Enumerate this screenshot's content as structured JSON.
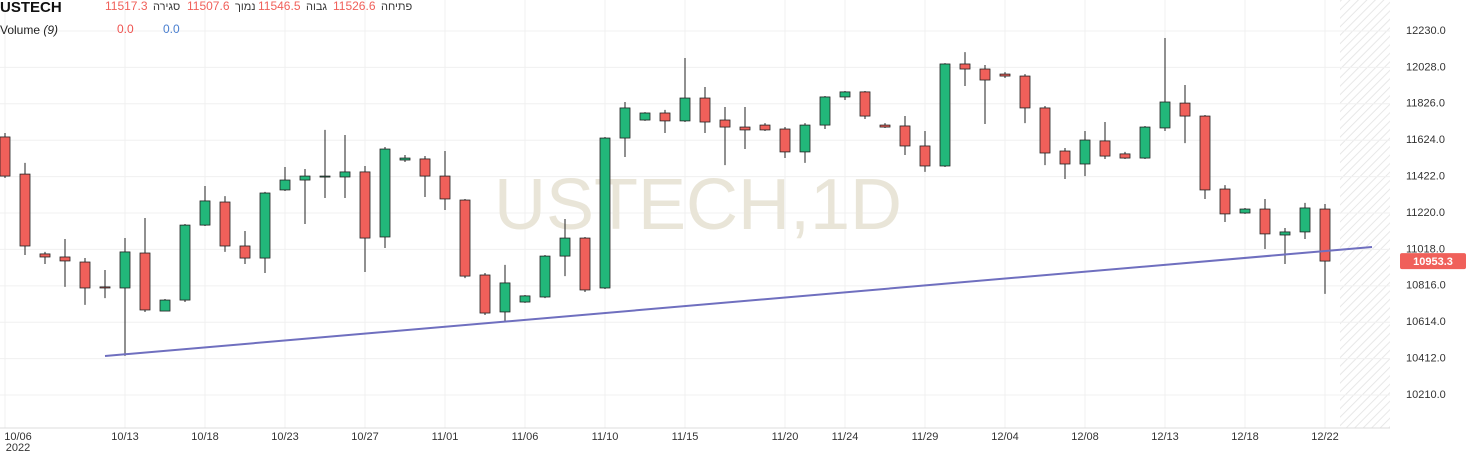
{
  "chart_data": {
    "type": "candlestick",
    "title": "USTECH",
    "watermark": "USTECH,1D",
    "year_label": "2022",
    "ohlc_legend": [
      {
        "label": "פתיחה",
        "value": 11526.6
      },
      {
        "label": "גבוה",
        "value": 11546.5
      },
      {
        "label": "נמוך",
        "value": 11507.6
      },
      {
        "label": "סגירה",
        "value": 11517.3
      }
    ],
    "volume_legend": {
      "label": "Volume",
      "period": "(9)",
      "values": [
        "0.0",
        "0.0"
      ],
      "colors": [
        "#ef5350",
        "#4a7fd0"
      ]
    },
    "categories": [
      "10/06",
      null,
      null,
      null,
      null,
      null,
      "10/13",
      null,
      null,
      null,
      "10/18",
      null,
      null,
      null,
      "10/23",
      null,
      null,
      null,
      "10/27",
      null,
      null,
      null,
      "11/01",
      null,
      null,
      null,
      "11/06",
      null,
      null,
      null,
      "11/10",
      null,
      null,
      null,
      "11/15",
      null,
      null,
      null,
      null,
      "11/20",
      null,
      null,
      "11/24",
      null,
      null,
      null,
      "11/29",
      null,
      null,
      null,
      "12/04",
      null,
      null,
      null,
      "12/08",
      null,
      null,
      null,
      "12/13",
      null,
      null,
      null,
      "12/18",
      null,
      null,
      null,
      "12/22"
    ],
    "open": [
      11642,
      11436,
      10993,
      10976,
      10948,
      10810,
      10804,
      10998,
      10676,
      10737,
      11153,
      11281,
      11037,
      10970,
      11348,
      11403,
      11420,
      11420,
      11448,
      11087,
      11514,
      11520,
      11425,
      11292,
      10876,
      10671,
      10726,
      10754,
      10981,
      11081,
      10804,
      11636,
      11736,
      11775,
      11731,
      11858,
      11736,
      11697,
      11708,
      11686,
      11559,
      11708,
      11864,
      11892,
      11708,
      11703,
      11592,
      11481,
      12047,
      12019,
      11991,
      11980,
      11803,
      11564,
      11492,
      11620,
      11548,
      11525,
      11692,
      11830,
      11758,
      11353,
      11220,
      11242,
      11098,
      11115,
      11242
    ],
    "high": [
      11664,
      11498,
      11004,
      11076,
      10970,
      10904,
      11081,
      11192,
      10743,
      11159,
      11370,
      11314,
      11120,
      11337,
      11475,
      11464,
      11681,
      11653,
      11481,
      11586,
      11542,
      11536,
      11564,
      11298,
      10887,
      10932,
      10765,
      10987,
      11187,
      11087,
      11642,
      11836,
      11780,
      11792,
      12080,
      11919,
      11808,
      11808,
      11719,
      11697,
      11719,
      11869,
      11897,
      11897,
      11719,
      11758,
      11675,
      12052,
      12113,
      12041,
      12002,
      11991,
      11814,
      11581,
      11675,
      11725,
      11559,
      11703,
      12191,
      11930,
      11764,
      11375,
      11248,
      11298,
      11137,
      11276,
      11270
    ],
    "low": [
      11414,
      10987,
      10937,
      10810,
      10710,
      10748,
      10427,
      10671,
      10676,
      10726,
      11148,
      11004,
      10937,
      10887,
      11342,
      11159,
      11303,
      11303,
      10893,
      11026,
      11503,
      11309,
      11237,
      10859,
      10654,
      10615,
      10721,
      10748,
      10870,
      10782,
      10798,
      11531,
      11731,
      11664,
      11725,
      11664,
      11486,
      11575,
      11675,
      11525,
      11498,
      11686,
      11847,
      11742,
      11692,
      11542,
      11448,
      11475,
      11925,
      11714,
      11969,
      11719,
      11486,
      11409,
      11425,
      11520,
      11520,
      11520,
      11675,
      11608,
      11298,
      11170,
      11215,
      11020,
      10937,
      11076,
      10771
    ],
    "close": [
      11425,
      11037,
      10976,
      10954,
      10804,
      10804,
      11004,
      10682,
      10737,
      11153,
      11287,
      11037,
      10970,
      11331,
      11403,
      11425,
      11425,
      11448,
      11081,
      11575,
      11525,
      11425,
      11298,
      10870,
      10665,
      10832,
      10760,
      10981,
      11081,
      10793,
      11636,
      11803,
      11775,
      11731,
      11858,
      11725,
      11697,
      11681,
      11681,
      11559,
      11708,
      11864,
      11892,
      11758,
      11697,
      11592,
      11481,
      12047,
      12019,
      11958,
      11980,
      11803,
      11553,
      11492,
      11625,
      11536,
      11525,
      11697,
      11836,
      11758,
      11348,
      11215,
      11242,
      11104,
      11115,
      11248,
      10953.3
    ],
    "up_color": "#22b77a",
    "down_color": "#f0605a",
    "last_price_color": "#f0605a",
    "ylim": [
      10027,
      12402
    ],
    "yticks": [
      {
        "value": 12230,
        "label": "12230.0"
      },
      {
        "value": 12028,
        "label": "12028.0"
      },
      {
        "value": 11826,
        "label": "11826.0"
      },
      {
        "value": 11624,
        "label": "11624.0"
      },
      {
        "value": 11422,
        "label": "11422.0"
      },
      {
        "value": 11220,
        "label": "11220.0"
      },
      {
        "value": 11018,
        "label": "11018.0"
      },
      {
        "value": 10816,
        "label": "10816.0"
      },
      {
        "value": 10614,
        "label": "10614.0"
      },
      {
        "value": 10412,
        "label": "10412.0"
      },
      {
        "value": 10210,
        "label": "10210.0"
      }
    ],
    "grid": true
  }
}
